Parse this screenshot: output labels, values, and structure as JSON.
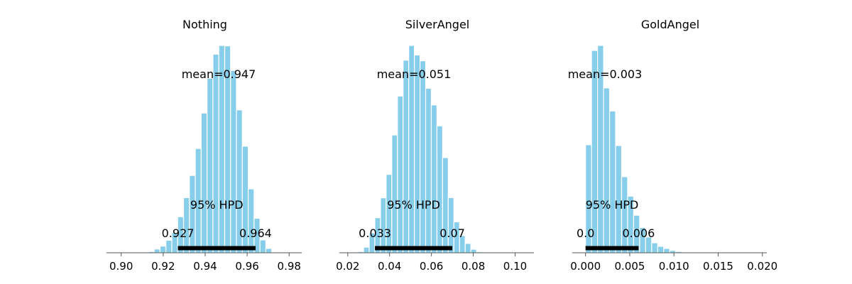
{
  "chart_data": [
    {
      "type": "bar",
      "title": "Nothing",
      "xlim": [
        0.893,
        0.986
      ],
      "xticks": [
        0.9,
        0.92,
        0.94,
        0.96,
        0.98
      ],
      "xtick_labels": [
        "0.90",
        "0.92",
        "0.94",
        "0.96",
        "0.98"
      ],
      "bin_width": 0.0028,
      "bins": [
        0.9115,
        0.9143,
        0.9171,
        0.9199,
        0.9227,
        0.9255,
        0.9283,
        0.9311,
        0.9339,
        0.9367,
        0.9395,
        0.9423,
        0.9451,
        0.9479,
        0.9507,
        0.9535,
        0.9563,
        0.9591,
        0.9619,
        0.9647,
        0.9675,
        0.9703
      ],
      "counts": [
        0.2,
        0.6,
        1.8,
        3.2,
        6.0,
        9.7,
        17.4,
        26.6,
        37.3,
        50.3,
        67.4,
        84.2,
        95.8,
        100,
        99.8,
        87.9,
        68.9,
        51.4,
        30.8,
        16.6,
        6.2,
        2.1
      ],
      "mean_label": "mean=0.947",
      "hpd_label": "95% HPD",
      "hpd": [
        0.927,
        0.964
      ],
      "hpd_low_label": "0.927",
      "hpd_high_label": "0.964",
      "color": "#87ceeb"
    },
    {
      "type": "bar",
      "title": "SilverAngel",
      "xlim": [
        0.016,
        0.109
      ],
      "xticks": [
        0.02,
        0.04,
        0.06,
        0.08,
        0.1
      ],
      "xtick_labels": [
        "0.02",
        "0.04",
        "0.06",
        "0.08",
        "0.10"
      ],
      "bin_width": 0.0027,
      "bins": [
        0.0262,
        0.0289,
        0.0316,
        0.0343,
        0.037,
        0.0397,
        0.0424,
        0.0451,
        0.0478,
        0.0505,
        0.0532,
        0.0559,
        0.0586,
        0.0613,
        0.064,
        0.0667,
        0.0694,
        0.0721,
        0.0748,
        0.0775,
        0.0802,
        0.0829
      ],
      "counts": [
        0.6,
        2.7,
        9.6,
        16.9,
        26.5,
        37.8,
        56.8,
        75.6,
        92.9,
        100,
        95.4,
        92.6,
        79.3,
        71.3,
        61.2,
        45.9,
        26.6,
        14.9,
        8.3,
        4.5,
        1.7,
        0.5
      ],
      "mean_label": "mean=0.051",
      "hpd_label": "95% HPD",
      "hpd": [
        0.033,
        0.07
      ],
      "hpd_low_label": "0.033",
      "hpd_high_label": "0.07",
      "color": "#87ceeb"
    },
    {
      "type": "bar",
      "title": "GoldAngel",
      "xlim": [
        -0.0015,
        0.0205
      ],
      "xticks": [
        0.0,
        0.005,
        0.01,
        0.015,
        0.02
      ],
      "xtick_labels": [
        "0.000",
        "0.005",
        "0.010",
        "0.015",
        "0.020"
      ],
      "bin_width": 0.00068,
      "bins": [
        0.00034,
        0.00102,
        0.0017,
        0.00238,
        0.00306,
        0.00374,
        0.00442,
        0.0051,
        0.00578,
        0.00646,
        0.00714,
        0.00782,
        0.0085,
        0.00918,
        0.00986,
        0.01054,
        0.01122,
        0.0119
      ],
      "counts": [
        52.1,
        97.6,
        100,
        79.5,
        68.4,
        51.7,
        36.7,
        27.3,
        18.1,
        12.2,
        7.6,
        4.8,
        3.1,
        2.1,
        1.1,
        0.6,
        0.3,
        0.2
      ],
      "mean_label": "mean=0.003",
      "hpd_label": "95% HPD",
      "hpd": [
        0.0,
        0.006
      ],
      "hpd_low_label": "0.0",
      "hpd_high_label": "0.006",
      "color": "#87ceeb"
    }
  ]
}
